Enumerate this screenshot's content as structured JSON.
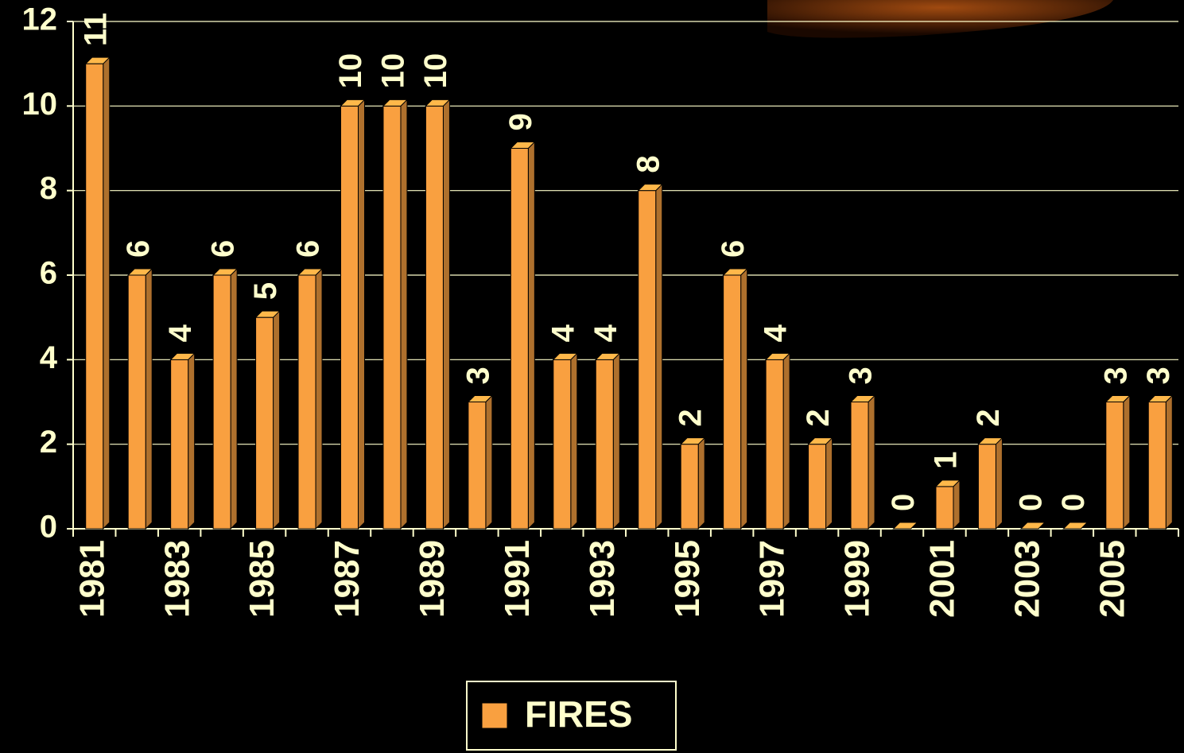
{
  "chart_data": {
    "type": "bar",
    "categories": [
      "1981",
      null,
      "1983",
      null,
      "1985",
      null,
      "1987",
      null,
      "1989",
      null,
      "1991",
      null,
      "1993",
      null,
      "1995",
      null,
      "1997",
      null,
      "1999",
      null,
      "2001",
      null,
      "2003",
      null,
      "2005",
      null
    ],
    "series": [
      {
        "name": "FIRES",
        "color": "#f9a040",
        "values": [
          11,
          6,
          4,
          6,
          5,
          6,
          10,
          10,
          10,
          3,
          9,
          4,
          4,
          8,
          2,
          6,
          4,
          2,
          3,
          0,
          1,
          2,
          0,
          0,
          3,
          3
        ]
      }
    ],
    "ylim": [
      0,
      12
    ],
    "yticks": [
      0,
      2,
      4,
      6,
      8,
      10,
      12
    ],
    "grid": true,
    "legend": "bottom"
  }
}
